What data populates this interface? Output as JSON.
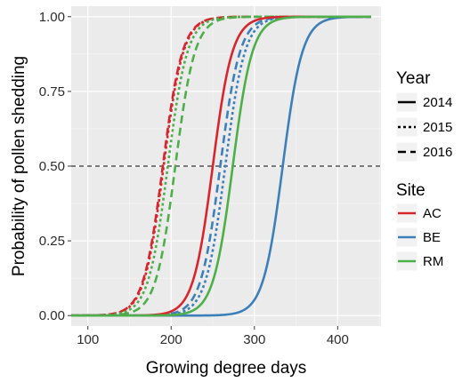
{
  "chart_data": {
    "type": "line",
    "title": "",
    "xlabel": "Growing degree days",
    "ylabel": "Probability of pollen shedding",
    "xlim": [
      80,
      452
    ],
    "ylim": [
      -0.035,
      1.035
    ],
    "x_ticks": [
      100,
      200,
      300,
      400
    ],
    "y_ticks": [
      0.0,
      0.25,
      0.5,
      0.75,
      1.0
    ],
    "x_tick_labels": [
      "100",
      "200",
      "300",
      "400"
    ],
    "y_tick_labels": [
      "0.00",
      "0.25",
      "0.50",
      "0.75",
      "1.00"
    ],
    "grid": true,
    "background": "#ebebeb",
    "reference_line": {
      "y": 0.5,
      "style": "dashed",
      "color": "#333333"
    },
    "x_range": [
      80,
      440
    ],
    "series": [
      {
        "site": "AC",
        "year": "2014",
        "midpoint": 250,
        "steepness": 0.085
      },
      {
        "site": "BE",
        "year": "2014",
        "midpoint": 334,
        "steepness": 0.085
      },
      {
        "site": "RM",
        "year": "2014",
        "midpoint": 274,
        "steepness": 0.085
      },
      {
        "site": "AC",
        "year": "2015",
        "midpoint": 191,
        "steepness": 0.085
      },
      {
        "site": "BE",
        "year": "2015",
        "midpoint": 265,
        "steepness": 0.085
      },
      {
        "site": "RM",
        "year": "2015",
        "midpoint": 196,
        "steepness": 0.085
      },
      {
        "site": "AC",
        "year": "2016",
        "midpoint": 190,
        "steepness": 0.085
      },
      {
        "site": "BE",
        "year": "2016",
        "midpoint": 259,
        "steepness": 0.085
      },
      {
        "site": "RM",
        "year": "2016",
        "midpoint": 205,
        "steepness": 0.085
      }
    ],
    "site_colors": {
      "AC": "#d7262d",
      "BE": "#3d7fb8",
      "RM": "#4daf4a"
    },
    "year_dash": {
      "2014": "none",
      "2015": "3,3",
      "2016": "9,5"
    },
    "legend": {
      "placement": "right",
      "year_title": "Year",
      "years": [
        "2014",
        "2015",
        "2016"
      ],
      "site_title": "Site",
      "sites": [
        "AC",
        "BE",
        "RM"
      ]
    }
  }
}
